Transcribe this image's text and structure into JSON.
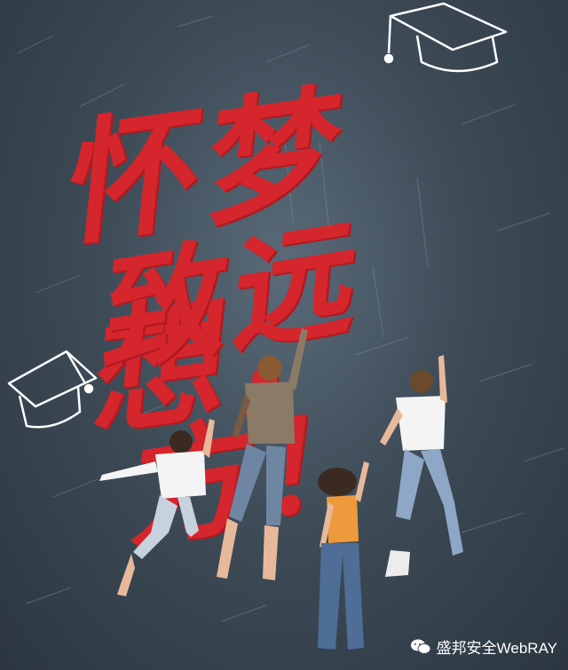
{
  "poster": {
    "headline_line1": "怀梦想，",
    "headline_line2": "致远方！",
    "watermark": "盛邦安全WebRAY",
    "colors": {
      "background": "#3e4c58",
      "headline": "#d4262c",
      "chalk": "#ffffff"
    },
    "icons": [
      "graduation-cap-icon",
      "graduation-cap-icon",
      "wechat-icon"
    ]
  }
}
